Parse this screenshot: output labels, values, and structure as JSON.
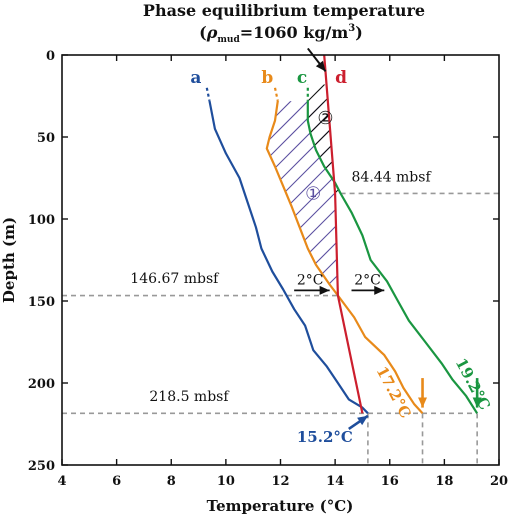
{
  "chart_data": {
    "type": "line",
    "title": "Phase equilibrium temperature",
    "subtitle": {
      "open": "(",
      "rho": "ρ",
      "sub": "mud",
      "value": "=1060 kg/m",
      "sup": "3",
      "close": ")"
    },
    "xlabel": "Temperature (°C)",
    "ylabel": "Depth (m)",
    "xlim": [
      4,
      20
    ],
    "ylim": [
      0,
      250
    ],
    "y_inverted": true,
    "x_ticks": [
      "4",
      "6",
      "8",
      "10",
      "12",
      "14",
      "16",
      "18",
      "20"
    ],
    "y_ticks": [
      "0",
      "50",
      "100",
      "150",
      "200",
      "250"
    ],
    "grid": false,
    "series": [
      {
        "name": "a",
        "color": "#1f4e9c",
        "dashed_head": [
          [
            9.3,
            20
          ],
          [
            9.4,
            28
          ]
        ],
        "points": [
          [
            9.4,
            28
          ],
          [
            9.6,
            45
          ],
          [
            10.0,
            60
          ],
          [
            10.5,
            75
          ],
          [
            10.8,
            90
          ],
          [
            11.1,
            105
          ],
          [
            11.3,
            118
          ],
          [
            11.7,
            132
          ],
          [
            12.1,
            143
          ],
          [
            12.5,
            155
          ],
          [
            12.9,
            165
          ],
          [
            13.2,
            180
          ],
          [
            13.7,
            190
          ],
          [
            14.1,
            200
          ],
          [
            14.5,
            210
          ],
          [
            15.0,
            215
          ],
          [
            15.2,
            218.5
          ]
        ]
      },
      {
        "name": "b",
        "color": "#e88a1a",
        "dashed_head": [
          [
            11.8,
            20
          ],
          [
            11.9,
            28
          ]
        ],
        "points": [
          [
            11.9,
            28
          ],
          [
            11.8,
            40
          ],
          [
            11.6,
            50
          ],
          [
            11.5,
            57
          ],
          [
            11.8,
            68
          ],
          [
            12.1,
            80
          ],
          [
            12.4,
            92
          ],
          [
            12.7,
            105
          ],
          [
            13.0,
            118
          ],
          [
            13.3,
            128
          ],
          [
            13.8,
            140
          ],
          [
            14.1,
            146.67
          ],
          [
            14.7,
            160
          ],
          [
            15.1,
            172
          ],
          [
            15.8,
            183
          ],
          [
            16.2,
            193
          ],
          [
            16.5,
            203
          ],
          [
            16.9,
            213
          ],
          [
            17.2,
            218.5
          ]
        ]
      },
      {
        "name": "c",
        "color": "#1a9641",
        "dashed_head": [
          [
            13.0,
            20
          ],
          [
            13.0,
            28
          ]
        ],
        "points": [
          [
            13.0,
            28
          ],
          [
            13.0,
            40
          ],
          [
            13.1,
            48
          ],
          [
            13.3,
            58
          ],
          [
            13.6,
            68
          ],
          [
            14.0,
            78
          ],
          [
            14.2,
            84.44
          ],
          [
            14.6,
            96
          ],
          [
            15.0,
            110
          ],
          [
            15.3,
            125
          ],
          [
            15.9,
            138
          ],
          [
            16.3,
            150
          ],
          [
            16.7,
            162
          ],
          [
            17.3,
            175
          ],
          [
            17.9,
            188
          ],
          [
            18.3,
            198
          ],
          [
            18.8,
            208
          ],
          [
            19.2,
            218.5
          ]
        ]
      },
      {
        "name": "d",
        "color": "#cc1f2e",
        "points": [
          [
            13.6,
            0
          ],
          [
            14.0,
            84.44
          ],
          [
            14.1,
            146.67
          ],
          [
            15.0,
            218.5
          ]
        ]
      }
    ],
    "reference_lines": [
      {
        "label": "84.44 mbsf",
        "depth": 84.44,
        "x_from": 14.2,
        "x_to": 20
      },
      {
        "label": "146.67 mbsf",
        "depth": 146.67,
        "x_from": 4,
        "x_to": 14.1
      },
      {
        "label": "218.5 mbsf",
        "depth": 218.5,
        "x_from": 4,
        "x_to": 19.2
      }
    ],
    "vertical_drops": [
      {
        "x": 15.2,
        "from_depth": 218.5
      },
      {
        "x": 17.2,
        "from_depth": 218.5
      },
      {
        "x": 19.2,
        "from_depth": 218.5
      }
    ],
    "annotations": [
      {
        "text": "2°C",
        "x": 12.6,
        "y": 140,
        "color": "#111111"
      },
      {
        "text": "2°C",
        "x": 14.7,
        "y": 140,
        "color": "#111111"
      },
      {
        "text": "17.2°C",
        "x": 15.5,
        "y": 192,
        "color": "#e88a1a",
        "rotate": 62
      },
      {
        "text": "19.2°C",
        "x": 18.4,
        "y": 187,
        "color": "#1a9641",
        "rotate": 62
      },
      {
        "text": "15.2°C",
        "x": 12.6,
        "y": 236,
        "color": "#1f4e9c"
      }
    ],
    "region_labels": [
      {
        "text": "①",
        "x": 12.9,
        "y": 88,
        "color": "#5b4fa0"
      },
      {
        "text": "②",
        "x": 13.35,
        "y": 42,
        "color": "#111111"
      }
    ]
  }
}
